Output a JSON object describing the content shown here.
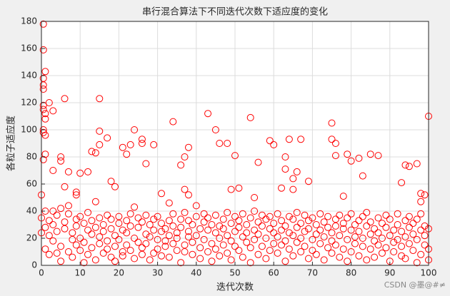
{
  "chart_data": {
    "type": "scatter",
    "title": "串行混合算法下不同迭代次数下适应度的变化",
    "x_label": "迭代次数",
    "y_label": "各粒子适应度",
    "watermark": "CSDN @墨@#≠",
    "color": "#ff0000",
    "grid": true,
    "xlim": [
      0,
      100
    ],
    "ylim": [
      0,
      180
    ],
    "xticks": [
      0,
      10,
      20,
      30,
      40,
      50,
      60,
      70,
      80,
      90,
      100
    ],
    "yticks": [
      0,
      20,
      40,
      60,
      80,
      100,
      120,
      140,
      160,
      180
    ],
    "points": [
      [
        0.5,
        178
      ],
      [
        0.5,
        159
      ],
      [
        1,
        143
      ],
      [
        0.5,
        138
      ],
      [
        0.5,
        133
      ],
      [
        0.5,
        130
      ],
      [
        0.5,
        118
      ],
      [
        0.5,
        115
      ],
      [
        1,
        112
      ],
      [
        2,
        120
      ],
      [
        1,
        108
      ],
      [
        3,
        114
      ],
      [
        6,
        123
      ],
      [
        15,
        123
      ],
      [
        0.5,
        100
      ],
      [
        0.5,
        98
      ],
      [
        1,
        96
      ],
      [
        1,
        82
      ],
      [
        0.5,
        78
      ],
      [
        3,
        70
      ],
      [
        5,
        80
      ],
      [
        5,
        77
      ],
      [
        7,
        69
      ],
      [
        9,
        54
      ],
      [
        9,
        52
      ],
      [
        10,
        68
      ],
      [
        12,
        69
      ],
      [
        13,
        84
      ],
      [
        14,
        83
      ],
      [
        15,
        89
      ],
      [
        15,
        99
      ],
      [
        17,
        94
      ],
      [
        18,
        62
      ],
      [
        19,
        58
      ],
      [
        21,
        87
      ],
      [
        22,
        82
      ],
      [
        23,
        89
      ],
      [
        24,
        100
      ],
      [
        26,
        93
      ],
      [
        26,
        90
      ],
      [
        27,
        75
      ],
      [
        29,
        89
      ],
      [
        31,
        53
      ],
      [
        33,
        46
      ],
      [
        34,
        106
      ],
      [
        36,
        74
      ],
      [
        37,
        80
      ],
      [
        38,
        87
      ],
      [
        37,
        56
      ],
      [
        38,
        52
      ],
      [
        43,
        112
      ],
      [
        45,
        100
      ],
      [
        46,
        90
      ],
      [
        48,
        90
      ],
      [
        49,
        56
      ],
      [
        50,
        81
      ],
      [
        51,
        57
      ],
      [
        54,
        109
      ],
      [
        55,
        50
      ],
      [
        56,
        76
      ],
      [
        59,
        92
      ],
      [
        60,
        89
      ],
      [
        62,
        57
      ],
      [
        63,
        80
      ],
      [
        63,
        71
      ],
      [
        64,
        93
      ],
      [
        65,
        64
      ],
      [
        65,
        56
      ],
      [
        66,
        69
      ],
      [
        67,
        93
      ],
      [
        69,
        62
      ],
      [
        75,
        105
      ],
      [
        75,
        93
      ],
      [
        76,
        90
      ],
      [
        76,
        81
      ],
      [
        78,
        51
      ],
      [
        79,
        82
      ],
      [
        80,
        77
      ],
      [
        82,
        79
      ],
      [
        83,
        66
      ],
      [
        85,
        82
      ],
      [
        87,
        81
      ],
      [
        93,
        61
      ],
      [
        94,
        74
      ],
      [
        95,
        73
      ],
      [
        97,
        75
      ],
      [
        98,
        53
      ],
      [
        98,
        47
      ],
      [
        99,
        52
      ],
      [
        100,
        110
      ],
      [
        0,
        35
      ],
      [
        0,
        24
      ],
      [
        0,
        52
      ],
      [
        1,
        28
      ],
      [
        1,
        12
      ],
      [
        1,
        40
      ],
      [
        2,
        33
      ],
      [
        2,
        22
      ],
      [
        2,
        8
      ],
      [
        3,
        40
      ],
      [
        3,
        18
      ],
      [
        3,
        30
      ],
      [
        4,
        9
      ],
      [
        4,
        25
      ],
      [
        4,
        37
      ],
      [
        5,
        14
      ],
      [
        5,
        42
      ],
      [
        5,
        3
      ],
      [
        6,
        32
      ],
      [
        6,
        27
      ],
      [
        6,
        58
      ],
      [
        7,
        10
      ],
      [
        7,
        38
      ],
      [
        7,
        44
      ],
      [
        8,
        19
      ],
      [
        8,
        24
      ],
      [
        8,
        6
      ],
      [
        9,
        34
      ],
      [
        9,
        15
      ],
      [
        9,
        29
      ],
      [
        10,
        11
      ],
      [
        10,
        36
      ],
      [
        10,
        20
      ],
      [
        11,
        2
      ],
      [
        11,
        31
      ],
      [
        11,
        17
      ],
      [
        12,
        26
      ],
      [
        12,
        8
      ],
      [
        12,
        39
      ],
      [
        13,
        13
      ],
      [
        13,
        23
      ],
      [
        13,
        33
      ],
      [
        14,
        4
      ],
      [
        14,
        28
      ],
      [
        14,
        47
      ],
      [
        15,
        16
      ],
      [
        15,
        35
      ],
      [
        15,
        21
      ],
      [
        16,
        9
      ],
      [
        16,
        30
      ],
      [
        16,
        25
      ],
      [
        17,
        12
      ],
      [
        17,
        37
      ],
      [
        17,
        18
      ],
      [
        18,
        6
      ],
      [
        18,
        27
      ],
      [
        18,
        34
      ],
      [
        19,
        14
      ],
      [
        19,
        22
      ],
      [
        19,
        3
      ],
      [
        20,
        31
      ],
      [
        20,
        19
      ],
      [
        20,
        36
      ],
      [
        21,
        10
      ],
      [
        21,
        26
      ],
      [
        21,
        7
      ],
      [
        22,
        33
      ],
      [
        22,
        24
      ],
      [
        22,
        15
      ],
      [
        23,
        38
      ],
      [
        23,
        11
      ],
      [
        23,
        29
      ],
      [
        24,
        20
      ],
      [
        24,
        5
      ],
      [
        24,
        43
      ],
      [
        25,
        35
      ],
      [
        25,
        17
      ],
      [
        25,
        28
      ],
      [
        26,
        13
      ],
      [
        26,
        32
      ],
      [
        26,
        8
      ],
      [
        27,
        23
      ],
      [
        27,
        37
      ],
      [
        27,
        16
      ],
      [
        28,
        4
      ],
      [
        28,
        30
      ],
      [
        28,
        21
      ],
      [
        29,
        26
      ],
      [
        29,
        9
      ],
      [
        29,
        34
      ],
      [
        30,
        19
      ],
      [
        30,
        12
      ],
      [
        30,
        36
      ],
      [
        31,
        25
      ],
      [
        31,
        7
      ],
      [
        31,
        31
      ],
      [
        32,
        18
      ],
      [
        32,
        27
      ],
      [
        32,
        14
      ],
      [
        33,
        33
      ],
      [
        33,
        22
      ],
      [
        33,
        6
      ],
      [
        34,
        29
      ],
      [
        34,
        16
      ],
      [
        34,
        38
      ],
      [
        35,
        11
      ],
      [
        35,
        24
      ],
      [
        35,
        20
      ],
      [
        36,
        34
      ],
      [
        36,
        2
      ],
      [
        36,
        28
      ],
      [
        37,
        15
      ],
      [
        37,
        39
      ],
      [
        37,
        10
      ],
      [
        38,
        21
      ],
      [
        38,
        33
      ],
      [
        38,
        25
      ],
      [
        39,
        8
      ],
      [
        39,
        30
      ],
      [
        39,
        17
      ],
      [
        40,
        36
      ],
      [
        40,
        22
      ],
      [
        40,
        44
      ],
      [
        41,
        5
      ],
      [
        41,
        27
      ],
      [
        41,
        13
      ],
      [
        42,
        32
      ],
      [
        42,
        19
      ],
      [
        42,
        38
      ],
      [
        43,
        26
      ],
      [
        43,
        10
      ],
      [
        43,
        35
      ],
      [
        44,
        16
      ],
      [
        44,
        30
      ],
      [
        44,
        3
      ],
      [
        45,
        24
      ],
      [
        45,
        37
      ],
      [
        45,
        12
      ],
      [
        46,
        29
      ],
      [
        46,
        20
      ],
      [
        46,
        7
      ],
      [
        47,
        34
      ],
      [
        47,
        15
      ],
      [
        47,
        27
      ],
      [
        48,
        9
      ],
      [
        48,
        39
      ],
      [
        48,
        22
      ],
      [
        49,
        31
      ],
      [
        49,
        18
      ],
      [
        49,
        4
      ],
      [
        50,
        25
      ],
      [
        50,
        36
      ],
      [
        50,
        14
      ],
      [
        51,
        11
      ],
      [
        51,
        33
      ],
      [
        51,
        28
      ],
      [
        52,
        21
      ],
      [
        52,
        6
      ],
      [
        52,
        38
      ],
      [
        53,
        17
      ],
      [
        53,
        30
      ],
      [
        53,
        24
      ],
      [
        54,
        35
      ],
      [
        54,
        13
      ],
      [
        54,
        2
      ],
      [
        55,
        26
      ],
      [
        55,
        19
      ],
      [
        55,
        40
      ],
      [
        56,
        8
      ],
      [
        56,
        32
      ],
      [
        56,
        23
      ],
      [
        57,
        14
      ],
      [
        57,
        37
      ],
      [
        57,
        29
      ],
      [
        58,
        20
      ],
      [
        58,
        5
      ],
      [
        58,
        34
      ],
      [
        59,
        27
      ],
      [
        59,
        11
      ],
      [
        59,
        36
      ],
      [
        60,
        16
      ],
      [
        60,
        24
      ],
      [
        60,
        31
      ],
      [
        61,
        9
      ],
      [
        61,
        38
      ],
      [
        61,
        21
      ],
      [
        62,
        33
      ],
      [
        62,
        15
      ],
      [
        62,
        26
      ],
      [
        63,
        3
      ],
      [
        63,
        29
      ],
      [
        63,
        18
      ],
      [
        64,
        36
      ],
      [
        64,
        12
      ],
      [
        64,
        24
      ],
      [
        65,
        22
      ],
      [
        65,
        34
      ],
      [
        65,
        7
      ],
      [
        66,
        28
      ],
      [
        66,
        17
      ],
      [
        66,
        39
      ],
      [
        67,
        10
      ],
      [
        67,
        31
      ],
      [
        67,
        20
      ],
      [
        68,
        25
      ],
      [
        68,
        37
      ],
      [
        68,
        14
      ],
      [
        69,
        5
      ],
      [
        69,
        27
      ],
      [
        69,
        33
      ],
      [
        70,
        19
      ],
      [
        70,
        11
      ],
      [
        70,
        35
      ],
      [
        71,
        30
      ],
      [
        71,
        23
      ],
      [
        71,
        8
      ],
      [
        72,
        38
      ],
      [
        72,
        16
      ],
      [
        72,
        26
      ],
      [
        73,
        21
      ],
      [
        73,
        4
      ],
      [
        73,
        32
      ],
      [
        74,
        13
      ],
      [
        74,
        28
      ],
      [
        74,
        36
      ],
      [
        75,
        24
      ],
      [
        75,
        9
      ],
      [
        75,
        18
      ],
      [
        76,
        34
      ],
      [
        76,
        15
      ],
      [
        76,
        29
      ],
      [
        77,
        6
      ],
      [
        77,
        37
      ],
      [
        77,
        22
      ],
      [
        78,
        27
      ],
      [
        78,
        12
      ],
      [
        78,
        31
      ],
      [
        79,
        19
      ],
      [
        79,
        35
      ],
      [
        79,
        3
      ],
      [
        80,
        26
      ],
      [
        80,
        10
      ],
      [
        80,
        38
      ],
      [
        81,
        16
      ],
      [
        81,
        30
      ],
      [
        81,
        21
      ],
      [
        82,
        33
      ],
      [
        82,
        7
      ],
      [
        82,
        25
      ],
      [
        83,
        14
      ],
      [
        83,
        36
      ],
      [
        83,
        20
      ],
      [
        84,
        29
      ],
      [
        84,
        4
      ],
      [
        84,
        39
      ],
      [
        85,
        23
      ],
      [
        85,
        12
      ],
      [
        85,
        32
      ],
      [
        86,
        18
      ],
      [
        86,
        27
      ],
      [
        86,
        6
      ],
      [
        87,
        35
      ],
      [
        87,
        15
      ],
      [
        87,
        24
      ],
      [
        88,
        9
      ],
      [
        88,
        31
      ],
      [
        88,
        20
      ],
      [
        89,
        37
      ],
      [
        89,
        13
      ],
      [
        89,
        28
      ],
      [
        90,
        22
      ],
      [
        90,
        3
      ],
      [
        90,
        34
      ],
      [
        91,
        17
      ],
      [
        91,
        26
      ],
      [
        91,
        10
      ],
      [
        92,
        30
      ],
      [
        92,
        19
      ],
      [
        92,
        38
      ],
      [
        93,
        7
      ],
      [
        93,
        25
      ],
      [
        93,
        14
      ],
      [
        94,
        33
      ],
      [
        94,
        21
      ],
      [
        94,
        5
      ],
      [
        95,
        28
      ],
      [
        95,
        16
      ],
      [
        95,
        36
      ],
      [
        96,
        11
      ],
      [
        96,
        23
      ],
      [
        96,
        31
      ],
      [
        97,
        2
      ],
      [
        97,
        19
      ],
      [
        97,
        34
      ],
      [
        98,
        26
      ],
      [
        98,
        8
      ],
      [
        98,
        38
      ],
      [
        99,
        15
      ],
      [
        99,
        29
      ],
      [
        99,
        22
      ],
      [
        100,
        12
      ],
      [
        100,
        27
      ],
      [
        100,
        4
      ]
    ]
  }
}
